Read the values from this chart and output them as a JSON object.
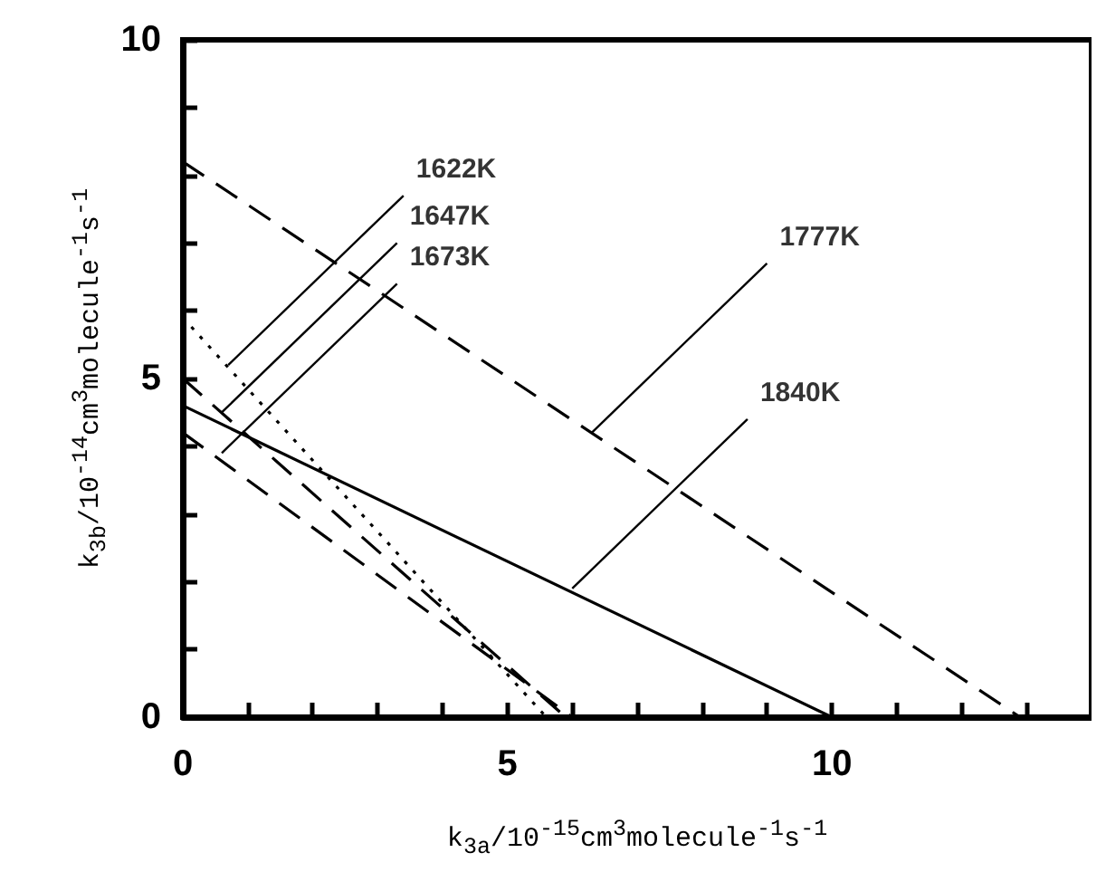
{
  "chart_data": {
    "type": "line",
    "xlabel": "k$_{3a}$/10$^{-15}$cm$^{3}$molecule$^{-1}$s$^{-1}$",
    "ylabel": "k$_{3b}$/10$^{-14}$cm$^{3}$molecule$^{-1}$s$^{-1}$",
    "series": [
      {
        "color": "#000000",
        "line_style": "dotted",
        "x": [
          0,
          5.6
        ],
        "values": [
          5.9,
          0
        ]
      },
      {
        "color": "#000000",
        "line_style": "dashed",
        "x": [
          0,
          5.9
        ],
        "values": [
          5.0,
          0
        ]
      },
      {
        "color": "#000000",
        "line_style": "dashed",
        "x": [
          0,
          6.0
        ],
        "values": [
          4.2,
          0
        ]
      },
      {
        "color": "#000000",
        "line_style": "dashed",
        "x": [
          0,
          12.9
        ],
        "values": [
          8.2,
          0
        ]
      },
      {
        "color": "#000000",
        "line_style": "solid",
        "x": [
          0,
          10
        ],
        "values": [
          4.6,
          0
        ]
      }
    ],
    "annotations": [
      {
        "text": "1622K",
        "x": 0.7,
        "y": 5.2
      },
      {
        "text": "1647K",
        "x": 0.6,
        "y": 4.5
      },
      {
        "text": "1673K",
        "x": 0.6,
        "y": 3.9
      },
      {
        "text": "1777K",
        "x": 6.3,
        "y": 4.2
      },
      {
        "text": "1840K",
        "x": 6.0,
        "y": 1.9
      }
    ],
    "xlim": [
      0,
      14
    ],
    "ylim": [
      0,
      10
    ],
    "xticks": [
      0,
      {
        "value": 1,
        "label": null
      },
      {
        "value": 2,
        "label": null
      },
      {
        "value": 3,
        "label": null
      },
      {
        "value": 4,
        "label": null
      },
      5,
      {
        "value": 6,
        "label": null
      },
      {
        "value": 7,
        "label": null
      },
      {
        "value": 8,
        "label": null
      },
      {
        "value": 9,
        "label": null
      },
      10,
      {
        "value": 11,
        "label": null
      },
      {
        "value": 12,
        "label": null
      },
      {
        "value": 13,
        "label": null
      }
    ],
    "yticks": [
      0,
      {
        "value": 1,
        "label": null
      },
      {
        "value": 2,
        "label": null
      },
      {
        "value": 3,
        "label": null
      },
      {
        "value": 4,
        "label": null
      },
      5,
      {
        "value": 6,
        "label": null
      },
      {
        "value": 7,
        "label": null
      },
      {
        "value": 8,
        "label": null
      },
      {
        "value": 9,
        "label": null
      },
      10
    ],
    "marker": "none",
    "grid": false
  }
}
